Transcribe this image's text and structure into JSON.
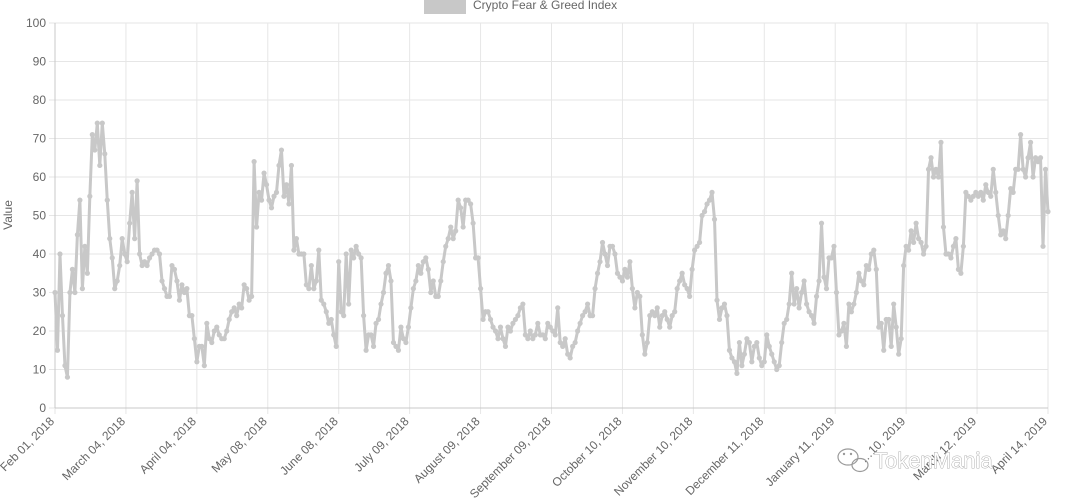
{
  "chart_data": {
    "type": "line",
    "series": [
      {
        "name": "Crypto Fear & Greed Index",
        "color": "#c8c8c8",
        "x_start": "Feb 01, 2018",
        "x_end": "Apr 14, 2019",
        "values": [
          30,
          15,
          40,
          24,
          11,
          8,
          30,
          36,
          30,
          45,
          54,
          31,
          42,
          35,
          55,
          71,
          67,
          74,
          63,
          74,
          66,
          54,
          44,
          39,
          31,
          33,
          37,
          44,
          40,
          38,
          48,
          56,
          44,
          59,
          40,
          37,
          38,
          37,
          39,
          40,
          41,
          41,
          40,
          33,
          31,
          29,
          29,
          37,
          36,
          33,
          28,
          32,
          30,
          31,
          24,
          24,
          18,
          12,
          16,
          16,
          11,
          22,
          18,
          17,
          20,
          21,
          19,
          18,
          18,
          20,
          23,
          25,
          26,
          24,
          27,
          26,
          32,
          31,
          28,
          29,
          64,
          47,
          56,
          54,
          61,
          58,
          54,
          52,
          55,
          56,
          63,
          67,
          55,
          58,
          53,
          63,
          41,
          44,
          40,
          40,
          40,
          32,
          31,
          37,
          31,
          33,
          41,
          28,
          27,
          25,
          22,
          23,
          19,
          16,
          38,
          25,
          24,
          40,
          27,
          41,
          39,
          42,
          40,
          39,
          24,
          15,
          19,
          19,
          16,
          22,
          23,
          27,
          30,
          35,
          37,
          33,
          17,
          16,
          15,
          21,
          18,
          17,
          21,
          26,
          31,
          33,
          37,
          35,
          38,
          39,
          36,
          30,
          33,
          29,
          29,
          33,
          38,
          42,
          44,
          47,
          44,
          46,
          54,
          52,
          47,
          54,
          54,
          53,
          48,
          39,
          39,
          31,
          23,
          25,
          25,
          23,
          21,
          20,
          18,
          21,
          18,
          16,
          21,
          20,
          22,
          23,
          24,
          26,
          27,
          19,
          18,
          20,
          18,
          19,
          22,
          19,
          19,
          18,
          22,
          21,
          20,
          19,
          26,
          17,
          16,
          18,
          14,
          13,
          16,
          17,
          20,
          22,
          24,
          25,
          27,
          24,
          24,
          31,
          35,
          38,
          43,
          40,
          37,
          42,
          42,
          40,
          35,
          34,
          33,
          36,
          34,
          38,
          31,
          26,
          30,
          29,
          19,
          14,
          17,
          24,
          25,
          24,
          26,
          21,
          24,
          25,
          23,
          21,
          24,
          25,
          31,
          33,
          35,
          32,
          31,
          29,
          36,
          41,
          42,
          43,
          50,
          51,
          53,
          54,
          56,
          49,
          28,
          23,
          26,
          27,
          24,
          15,
          13,
          12,
          9,
          17,
          11,
          14,
          18,
          17,
          12,
          16,
          17,
          13,
          11,
          12,
          19,
          16,
          14,
          12,
          10,
          11,
          17,
          22,
          23,
          27,
          35,
          27,
          31,
          26,
          30,
          33,
          27,
          25,
          24,
          22,
          29,
          33,
          48,
          34,
          31,
          39,
          39,
          42,
          30,
          19,
          20,
          22,
          16,
          27,
          25,
          27,
          30,
          35,
          33,
          32,
          37,
          36,
          40,
          41,
          36,
          21,
          22,
          15,
          23,
          23,
          16,
          27,
          21,
          14,
          18,
          37,
          42,
          41,
          46,
          43,
          48,
          44,
          43,
          40,
          42,
          62,
          65,
          60,
          62,
          60,
          69,
          47,
          40,
          40,
          39,
          42,
          44,
          36,
          35,
          42,
          56,
          55,
          54,
          55,
          56,
          55,
          56,
          54,
          58,
          56,
          55,
          62,
          56,
          50,
          45,
          46,
          44,
          50,
          57,
          56,
          62,
          62,
          71,
          62,
          60,
          65,
          69,
          60,
          65,
          64,
          65,
          42,
          62,
          51
        ],
        "markers": true
      }
    ],
    "x_tick_labels": [
      "Feb 01, 2018",
      "March 04, 2018",
      "April 04, 2018",
      "May 08, 2018",
      "June 08, 2018",
      "July 09, 2018",
      "August 09, 2018",
      "September 09, 2018",
      "October 10, 2018",
      "November 10, 2018",
      "December 11, 2018",
      "January 11, 2019",
      "…10, 2019",
      "March 12, 2019",
      "April 14, 2019"
    ],
    "y_ticks": [
      0,
      10,
      20,
      30,
      40,
      50,
      60,
      70,
      80,
      90,
      100
    ],
    "ylabel": "Value",
    "xlabel": "",
    "ylim": [
      0,
      100
    ],
    "grid": true,
    "legend_position": "top-center",
    "gridline_color": "#e6e6e6",
    "axis_color": "#666666",
    "watermark": {
      "brand": "TokenMania",
      "icon": "wechat-logo-icon"
    }
  }
}
